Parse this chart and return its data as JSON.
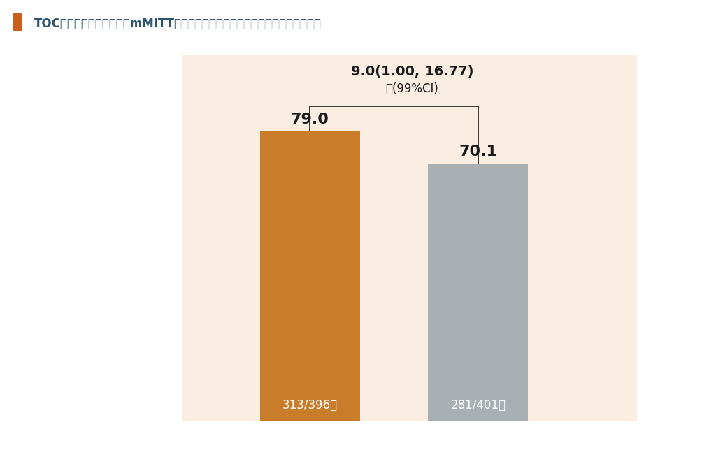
{
  "title": "TOC時点の細菌学的効果（mMITT集団：重要な副次評価項目、検証的解析項目）",
  "title_color": "#2e5472",
  "title_marker_color": "#c8601a",
  "bar_labels": [
    "313/396例",
    "281/401例"
  ],
  "bar_values": [
    79.0,
    70.1
  ],
  "bar_colors": [
    "#c97c2a",
    "#a8b0b4"
  ],
  "bar_value_labels": [
    "79.0",
    "70.1"
  ],
  "diff_label_line1": "差(99%CI)",
  "diff_label_line2": "9.0(1.00, 16.77)",
  "background_color": "#faeee3",
  "outer_background": "#ffffff",
  "ylim": [
    0,
    100
  ],
  "figsize": [
    10.24,
    6.54
  ],
  "dpi": 100
}
